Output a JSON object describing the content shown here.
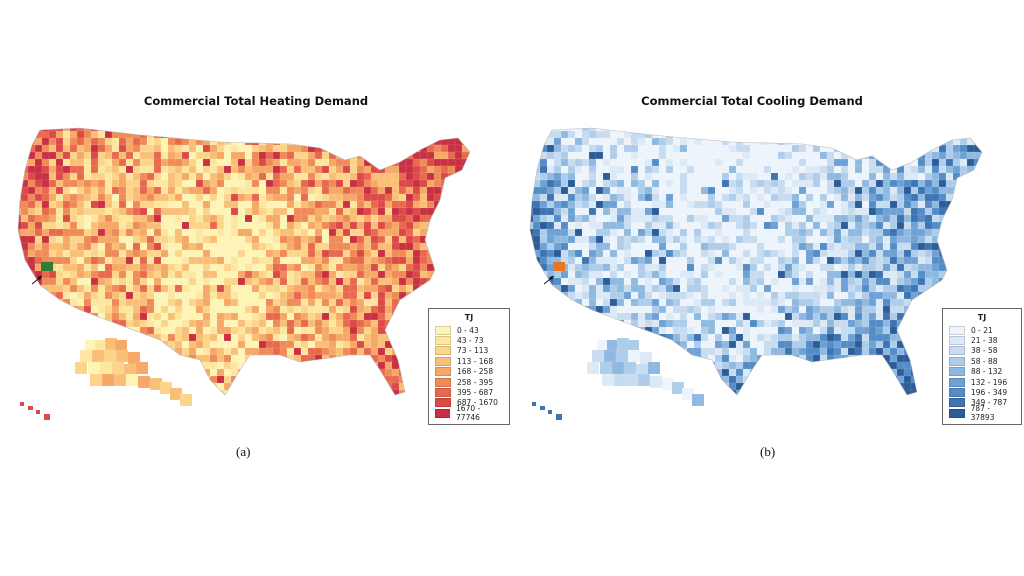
{
  "maps": [
    {
      "title": "Commercial Total Heating Demand",
      "caption": "(a)",
      "legend": {
        "title": "TJ",
        "items": [
          {
            "label": "0 - 43",
            "color": "#fdf4b6"
          },
          {
            "label": "43 - 73",
            "color": "#fde7a0"
          },
          {
            "label": "73 - 113",
            "color": "#fcd58a"
          },
          {
            "label": "113 - 168",
            "color": "#f9bf76"
          },
          {
            "label": "168 - 258",
            "color": "#f6a866"
          },
          {
            "label": "258 - 395",
            "color": "#f08a58"
          },
          {
            "label": "395 - 687",
            "color": "#e9694e"
          },
          {
            "label": "687 - 1670",
            "color": "#dc4a47"
          },
          {
            "label": "1670 - 77746",
            "color": "#c93043"
          }
        ]
      },
      "highlight_color": "#2e7d32"
    },
    {
      "title": "Commercial Total Cooling Demand",
      "caption": "(b)",
      "legend": {
        "title": "TJ",
        "items": [
          {
            "label": "0 - 21",
            "color": "#eef4fb"
          },
          {
            "label": "21 - 38",
            "color": "#dce9f6"
          },
          {
            "label": "38 - 58",
            "color": "#c7dcf0"
          },
          {
            "label": "58 - 88",
            "color": "#aecdea"
          },
          {
            "label": "88 - 132",
            "color": "#8fb9e0"
          },
          {
            "label": "132 - 196",
            "color": "#6fa2d4"
          },
          {
            "label": "196 - 349",
            "color": "#548cc6"
          },
          {
            "label": "349 - 787",
            "color": "#3e74b3"
          },
          {
            "label": "787 - 37893",
            "color": "#2d5d98"
          }
        ]
      },
      "highlight_color": "#e87722"
    }
  ]
}
